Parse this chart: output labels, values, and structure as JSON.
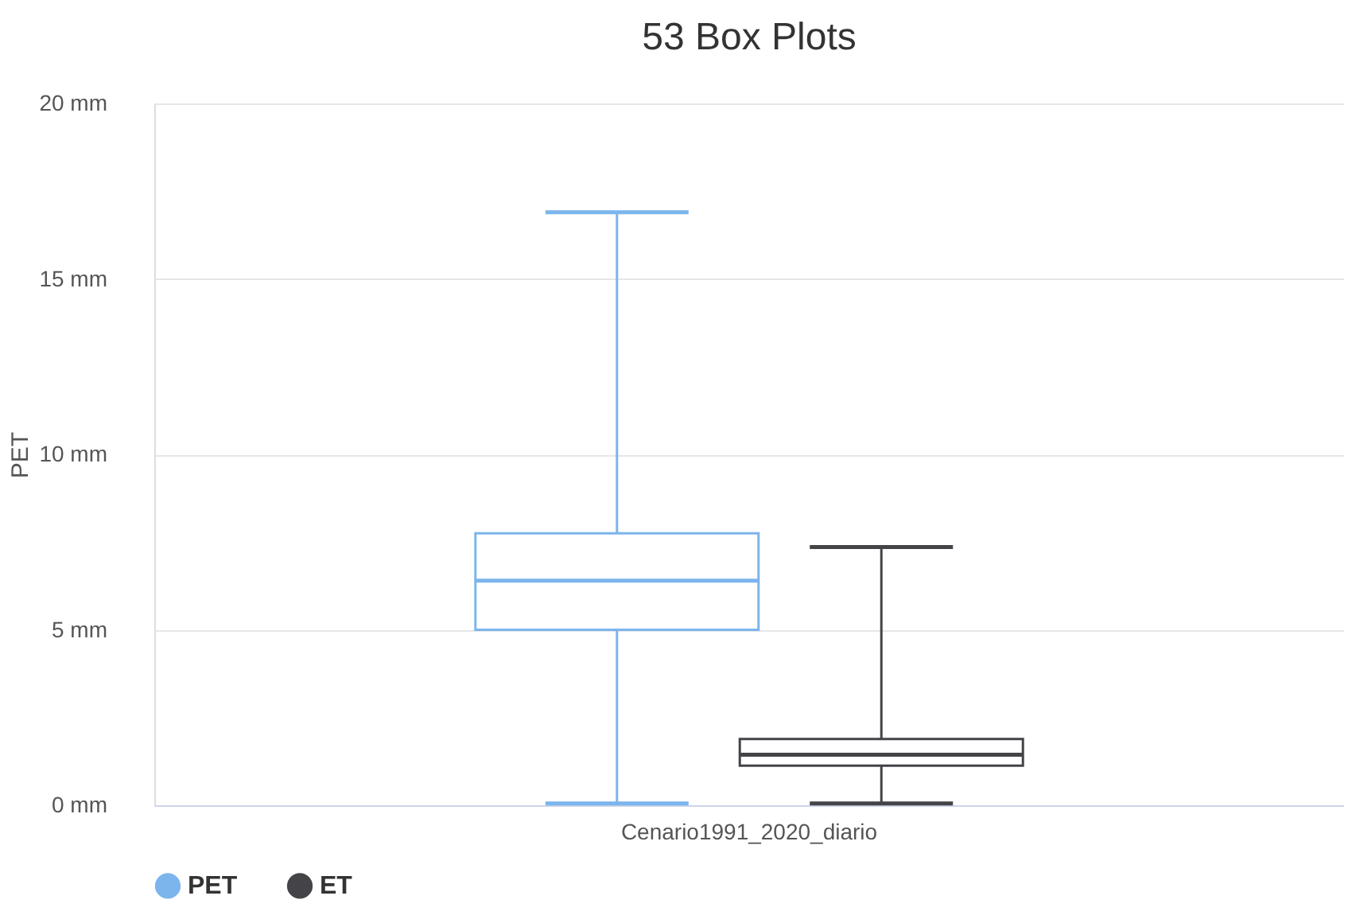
{
  "chart_data": {
    "type": "box",
    "title": "53 Box Plots",
    "ylabel": "PET",
    "categories": [
      "Cenario1991_2020_diario"
    ],
    "ylim": [
      0,
      20
    ],
    "yticks": [
      {
        "value": 0,
        "label": "0 mm"
      },
      {
        "value": 5,
        "label": "5 mm"
      },
      {
        "value": 10,
        "label": "10 mm"
      },
      {
        "value": 15,
        "label": "15 mm"
      },
      {
        "value": 20,
        "label": "20 mm"
      }
    ],
    "grid": "y",
    "legend": "bottom",
    "series": [
      {
        "name": "PET",
        "color": "#7cb5ec",
        "boxes": [
          {
            "low": 0.05,
            "q1": 5.0,
            "median": 6.4,
            "q3": 7.75,
            "high": 16.9
          }
        ]
      },
      {
        "name": "ET",
        "color": "#434348",
        "boxes": [
          {
            "low": 0.05,
            "q1": 1.13,
            "median": 1.44,
            "q3": 1.89,
            "high": 7.36
          }
        ]
      }
    ]
  }
}
